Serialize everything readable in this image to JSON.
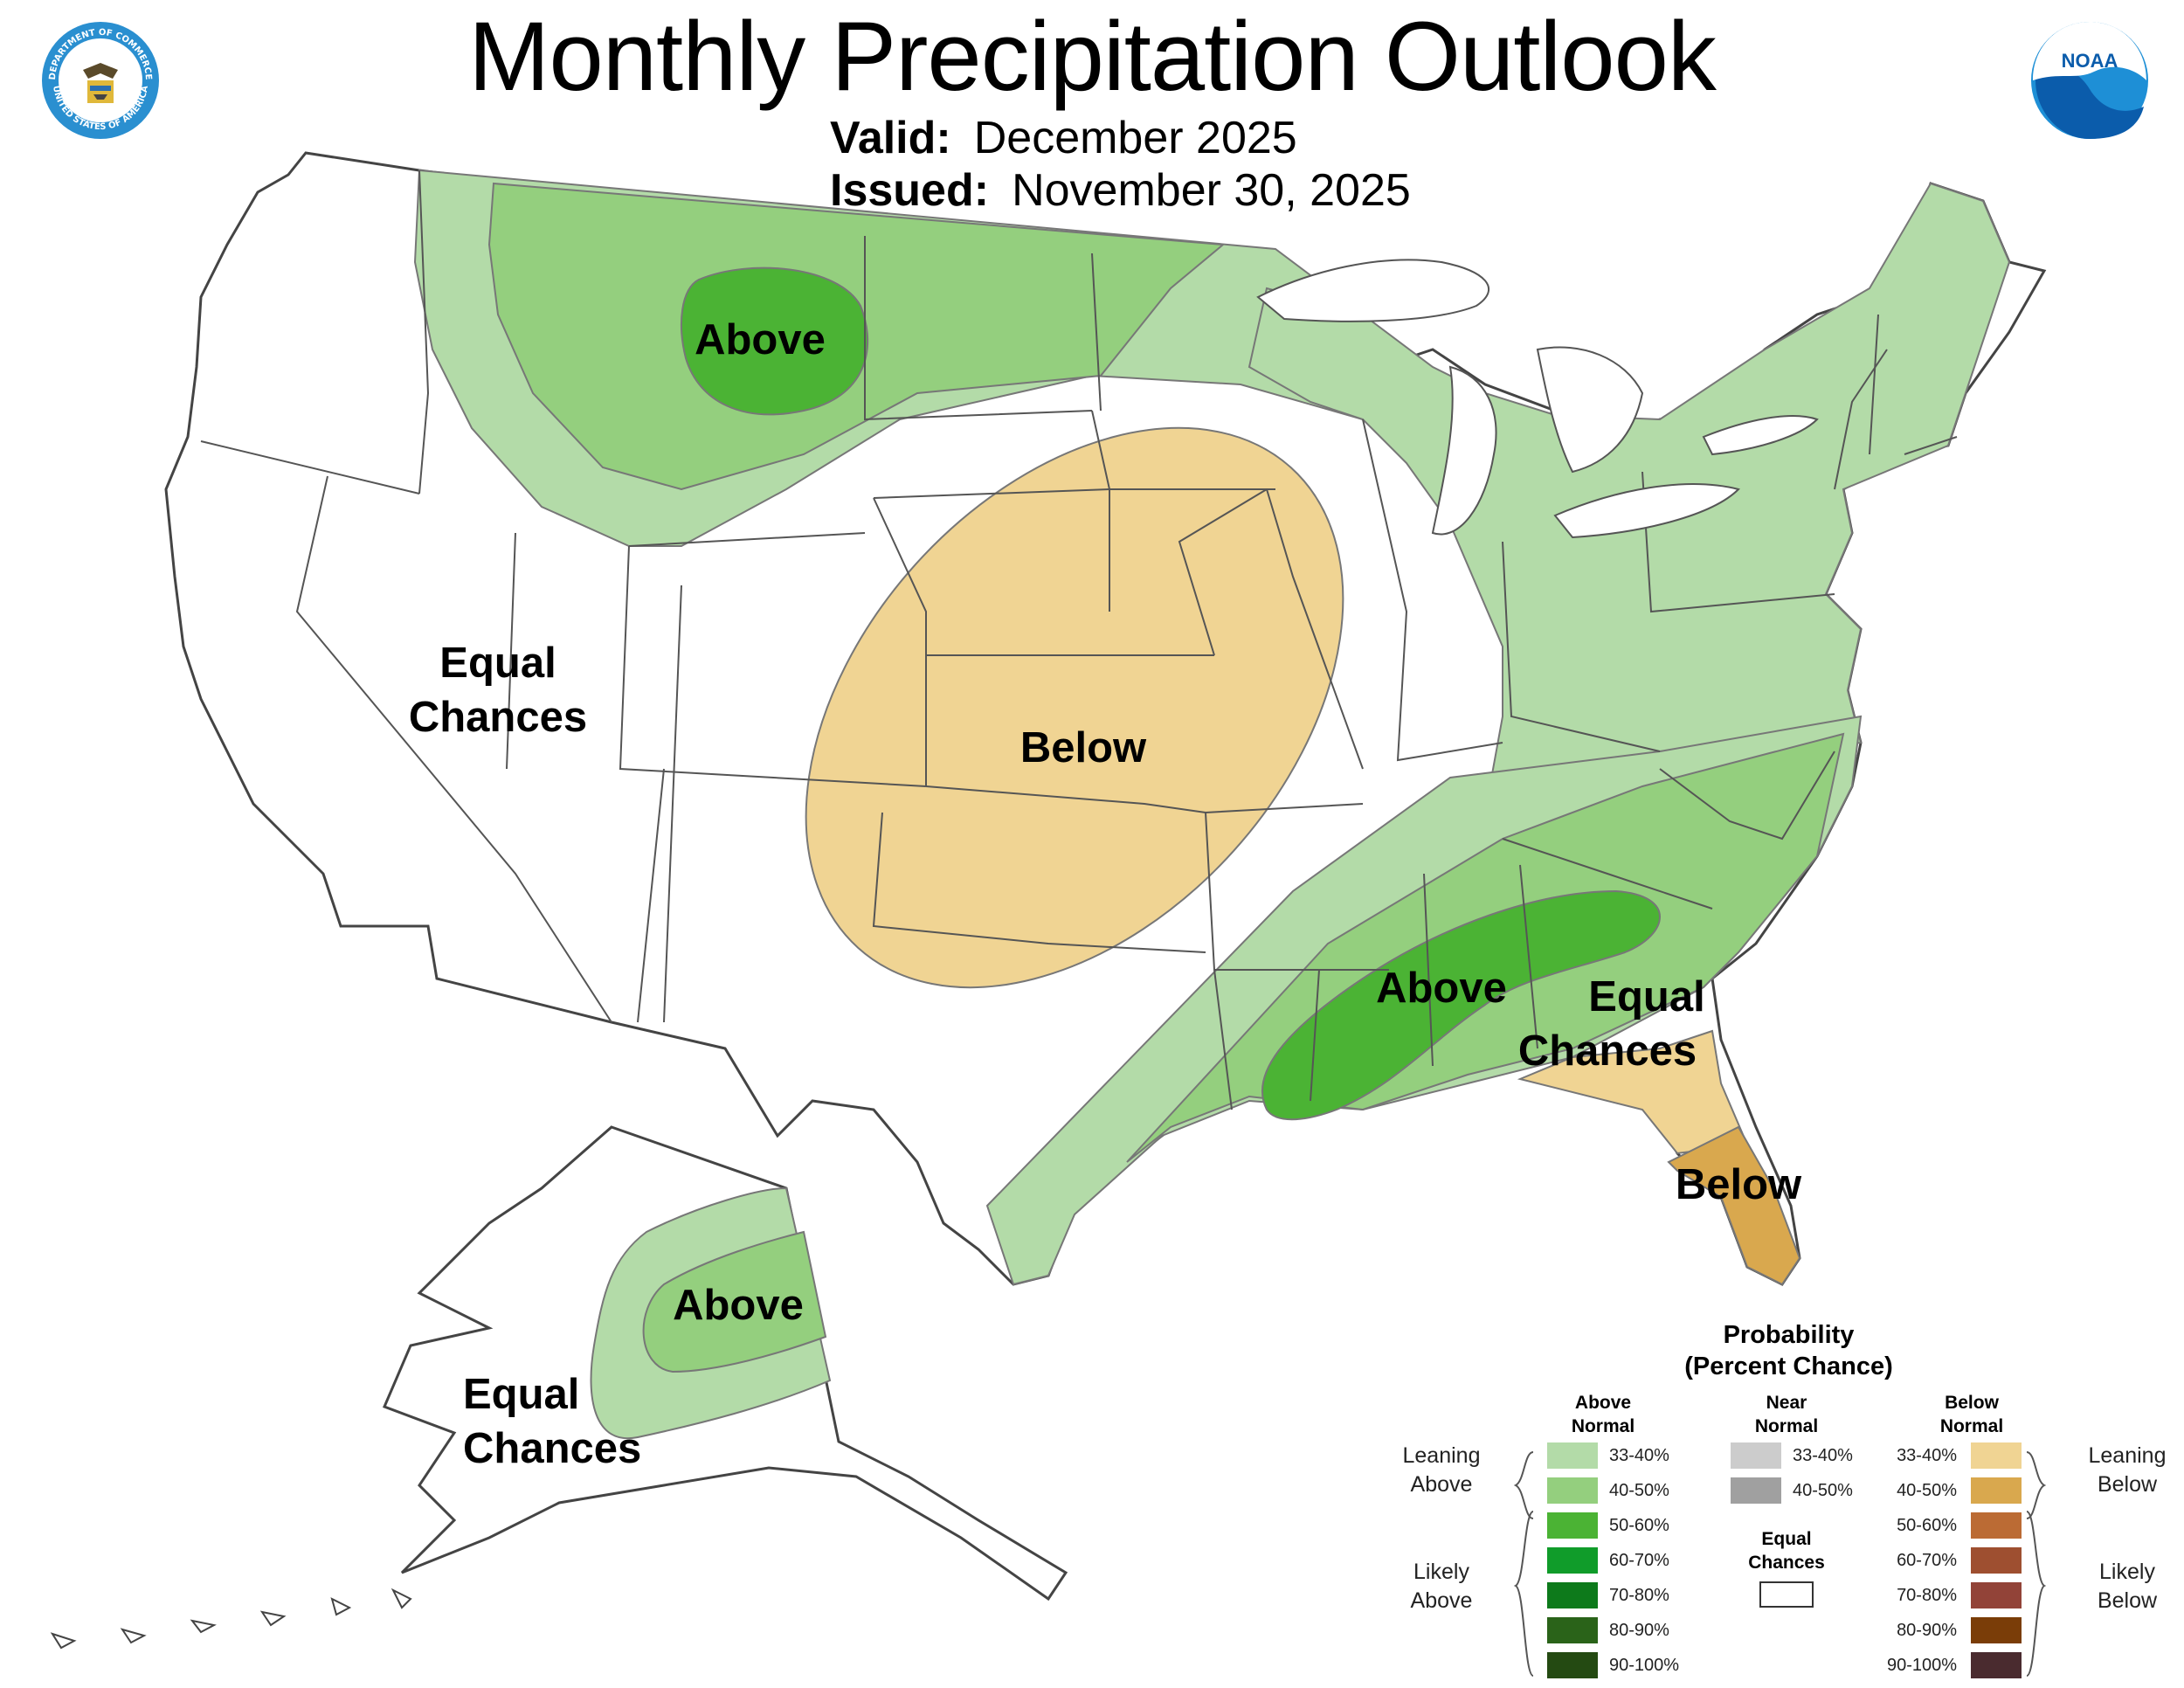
{
  "header": {
    "title": "Monthly Precipitation Outlook",
    "valid_label": "Valid:",
    "valid_value": "December 2025",
    "issued_label": "Issued:",
    "issued_value": "November 30, 2025"
  },
  "logos": {
    "left": {
      "name": "department-of-commerce-seal",
      "text_top": "DEPARTMENT OF COMMERCE",
      "text_bottom": "UNITED STATES OF AMERICA"
    },
    "right": {
      "name": "noaa-logo",
      "text": "NOAA"
    }
  },
  "map_labels": {
    "west_equal": [
      "Equal",
      "Chances"
    ],
    "north_above": "Above",
    "plains_below": "Below",
    "southeast_above": "Above",
    "florida_equal": [
      "Equal",
      "Chances"
    ],
    "florida_below": "Below",
    "alaska_above": "Above",
    "alaska_equal": [
      "Equal",
      "Chances"
    ]
  },
  "legend": {
    "title": [
      "Probability",
      "(Percent Chance)"
    ],
    "above_header": [
      "Above",
      "Normal"
    ],
    "near_header": [
      "Near",
      "Normal"
    ],
    "below_header": [
      "Below",
      "Normal"
    ],
    "leaning_above": [
      "Leaning",
      "Above"
    ],
    "likely_above": [
      "Likely",
      "Above"
    ],
    "leaning_below": [
      "Leaning",
      "Below"
    ],
    "likely_below": [
      "Likely",
      "Below"
    ],
    "equal_chances": [
      "Equal",
      "Chances"
    ],
    "above": [
      {
        "label": "33-40%",
        "color": "#b3dba8"
      },
      {
        "label": "40-50%",
        "color": "#94cf7e"
      },
      {
        "label": "50-60%",
        "color": "#4bb334"
      },
      {
        "label": "60-70%",
        "color": "#109c2a"
      },
      {
        "label": "70-80%",
        "color": "#0d7a1b"
      },
      {
        "label": "80-90%",
        "color": "#2a6319"
      },
      {
        "label": "90-100%",
        "color": "#244a12"
      }
    ],
    "near": [
      {
        "label": "33-40%",
        "color": "#cccccc"
      },
      {
        "label": "40-50%",
        "color": "#a0a0a0"
      }
    ],
    "below": [
      {
        "label": "33-40%",
        "color": "#f0d493"
      },
      {
        "label": "40-50%",
        "color": "#d9a84e"
      },
      {
        "label": "50-60%",
        "color": "#bb6b34"
      },
      {
        "label": "60-70%",
        "color": "#9e4f30"
      },
      {
        "label": "70-80%",
        "color": "#924338"
      },
      {
        "label": "80-90%",
        "color": "#7a3d08"
      },
      {
        "label": "90-100%",
        "color": "#4a2b2f"
      }
    ]
  }
}
